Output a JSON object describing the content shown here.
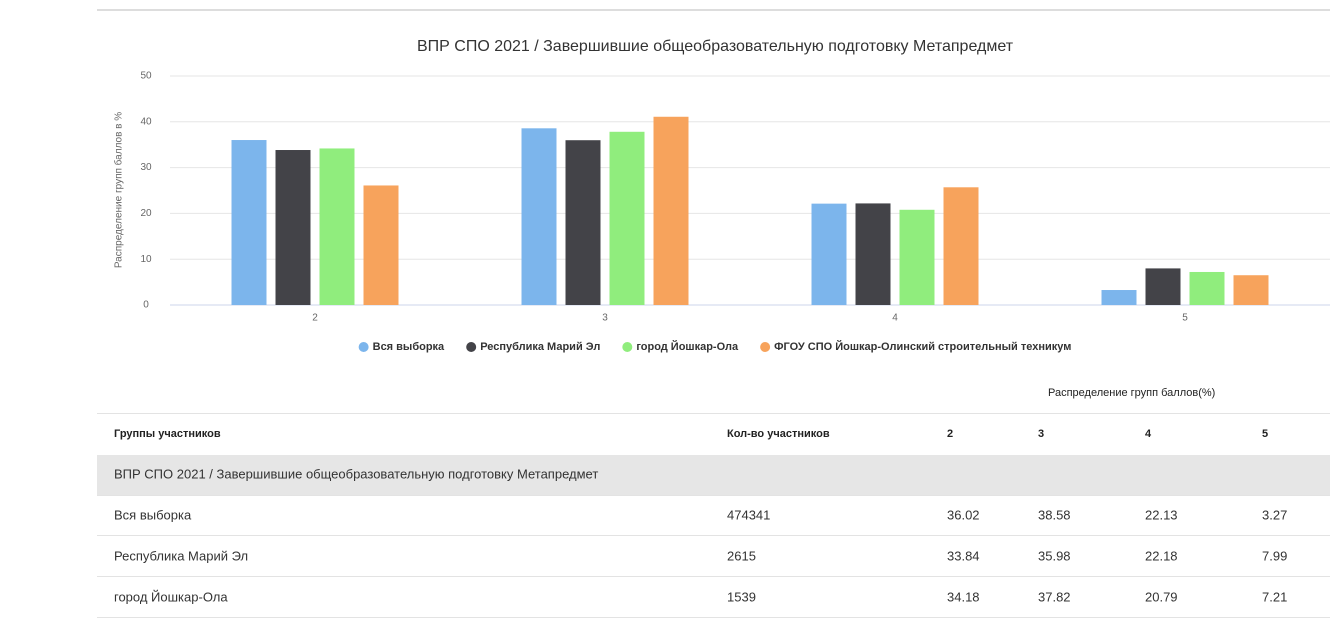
{
  "chart_data": {
    "type": "bar",
    "title": "ВПР СПО 2021 / Завершившие общеобразовательную подготовку Метапредмет",
    "y_label": "Распределение групп баллов в %",
    "categories": [
      "2",
      "3",
      "4",
      "5"
    ],
    "series": [
      {
        "name": "Вся выборка",
        "color": "#7cb5ec",
        "values": [
          36.02,
          38.58,
          22.13,
          3.27
        ]
      },
      {
        "name": "Республика Марий Эл",
        "color": "#434348",
        "values": [
          33.84,
          35.98,
          22.18,
          7.99
        ]
      },
      {
        "name": "город Йошкар-Ола",
        "color": "#90ed7d",
        "values": [
          34.18,
          37.82,
          20.79,
          7.21
        ]
      },
      {
        "name": "ФГОУ СПО Йошкар-Олинский строительный техникум",
        "color": "#f7a35c",
        "values": [
          26.1,
          41.1,
          25.7,
          6.5
        ]
      }
    ],
    "ylim": [
      0,
      50
    ],
    "yticks": [
      0,
      10,
      20,
      30,
      40,
      50
    ],
    "grid": true
  },
  "table": {
    "super_header": "Распределение групп баллов(%)",
    "columns": [
      "Группы участников",
      "Кол-во участников",
      "2",
      "3",
      "4",
      "5"
    ],
    "group": "ВПР СПО 2021 / Завершившие общеобразовательную подготовку Метапредмет",
    "rows": [
      [
        "Вся выборка",
        474341,
        36.02,
        38.58,
        22.13,
        3.27
      ],
      [
        "Республика Марий Эл",
        2615,
        33.84,
        35.98,
        22.18,
        7.99
      ],
      [
        "город Йошкар-Ола",
        1539,
        34.18,
        37.82,
        20.79,
        7.21
      ]
    ]
  }
}
